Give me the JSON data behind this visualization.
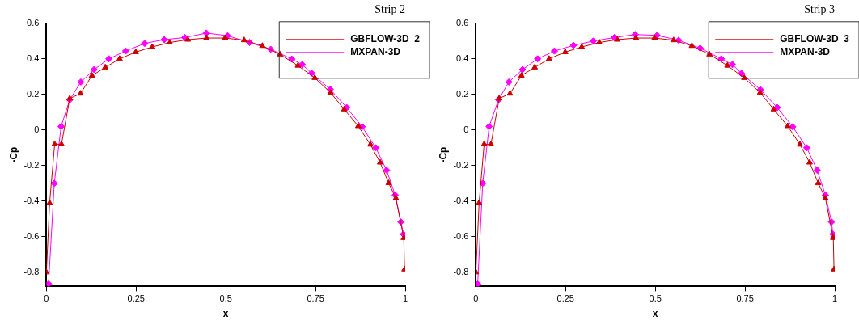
{
  "chart_data": [
    {
      "type": "line",
      "title": "Strip 2",
      "xlabel": "x",
      "ylabel": "-Cp",
      "xlim": [
        0,
        1
      ],
      "ylim": [
        -0.88,
        0.6
      ],
      "xticks": [
        0,
        0.25,
        0.5,
        0.75,
        1
      ],
      "yticks": [
        -0.8,
        -0.6,
        -0.4,
        -0.2,
        0,
        0.2,
        0.4,
        0.6
      ],
      "grid": false,
      "legend": "top right",
      "line_style": "solid",
      "series": [
        {
          "name": "GBFLOW-3D  2",
          "color": "#cc0000",
          "marker": "triangle",
          "x": [
            0.0,
            0.009,
            0.023,
            0.042,
            0.065,
            0.095,
            0.127,
            0.164,
            0.204,
            0.249,
            0.295,
            0.344,
            0.394,
            0.446,
            0.498,
            0.551,
            0.602,
            0.651,
            0.701,
            0.748,
            0.792,
            0.83,
            0.869,
            0.903,
            0.93,
            0.954,
            0.974,
            0.996,
            0.998
          ],
          "values": [
            -0.8,
            -0.41,
            -0.08,
            -0.08,
            0.177,
            0.205,
            0.306,
            0.352,
            0.4,
            0.438,
            0.467,
            0.492,
            0.508,
            0.517,
            0.517,
            0.505,
            0.473,
            0.425,
            0.362,
            0.293,
            0.21,
            0.116,
            0.022,
            -0.082,
            -0.183,
            -0.299,
            -0.384,
            -0.607,
            -0.784
          ]
        },
        {
          "name": "MXPAN-3D",
          "color": "#ff00ff",
          "marker": "diamond",
          "x": [
            0.006,
            0.022,
            0.041,
            0.065,
            0.096,
            0.133,
            0.174,
            0.221,
            0.274,
            0.328,
            0.386,
            0.446,
            0.505,
            0.566,
            0.625,
            0.684,
            0.713,
            0.739,
            0.791,
            0.837,
            0.88,
            0.918,
            0.948,
            0.972,
            0.988,
            0.995
          ],
          "values": [
            -0.866,
            -0.3,
            0.02,
            0.17,
            0.27,
            0.34,
            0.4,
            0.444,
            0.487,
            0.508,
            0.52,
            0.545,
            0.53,
            0.492,
            0.454,
            0.399,
            0.368,
            0.32,
            0.229,
            0.126,
            0.018,
            -0.1,
            -0.226,
            -0.366,
            -0.517,
            -0.586
          ]
        }
      ]
    },
    {
      "type": "line",
      "title": "Strip 3",
      "xlabel": "x",
      "ylabel": "-Cp",
      "xlim": [
        0,
        1
      ],
      "ylim": [
        -0.88,
        0.6
      ],
      "xticks": [
        0,
        0.25,
        0.5,
        0.75,
        1
      ],
      "yticks": [
        -0.8,
        -0.6,
        -0.4,
        -0.2,
        0,
        0.2,
        0.4,
        0.6
      ],
      "grid": false,
      "legend": "top right",
      "line_style": "solid",
      "series": [
        {
          "name": "GBFLOW-3D  3",
          "color": "#cc0000",
          "marker": "triangle",
          "x": [
            0.0,
            0.009,
            0.023,
            0.042,
            0.065,
            0.095,
            0.127,
            0.164,
            0.204,
            0.249,
            0.295,
            0.344,
            0.394,
            0.446,
            0.498,
            0.551,
            0.602,
            0.651,
            0.701,
            0.748,
            0.792,
            0.83,
            0.869,
            0.903,
            0.93,
            0.954,
            0.974,
            0.996,
            0.998
          ],
          "values": [
            -0.8,
            -0.41,
            -0.08,
            -0.08,
            0.177,
            0.205,
            0.306,
            0.352,
            0.4,
            0.438,
            0.467,
            0.492,
            0.508,
            0.517,
            0.517,
            0.505,
            0.473,
            0.425,
            0.362,
            0.293,
            0.21,
            0.116,
            0.022,
            -0.082,
            -0.183,
            -0.299,
            -0.384,
            -0.607,
            -0.784
          ]
        },
        {
          "name": "MXPAN-3D",
          "color": "#ff00ff",
          "marker": "diamond",
          "x": [
            0.005,
            0.019,
            0.037,
            0.063,
            0.092,
            0.13,
            0.172,
            0.219,
            0.272,
            0.327,
            0.386,
            0.444,
            0.505,
            0.565,
            0.625,
            0.684,
            0.715,
            0.74,
            0.793,
            0.84,
            0.883,
            0.922,
            0.951,
            0.974,
            0.991,
            0.995
          ],
          "values": [
            -0.866,
            -0.3,
            0.02,
            0.17,
            0.27,
            0.34,
            0.4,
            0.444,
            0.476,
            0.5,
            0.52,
            0.537,
            0.532,
            0.505,
            0.46,
            0.4,
            0.368,
            0.318,
            0.227,
            0.126,
            0.018,
            -0.1,
            -0.226,
            -0.366,
            -0.517,
            -0.586
          ]
        }
      ]
    }
  ]
}
